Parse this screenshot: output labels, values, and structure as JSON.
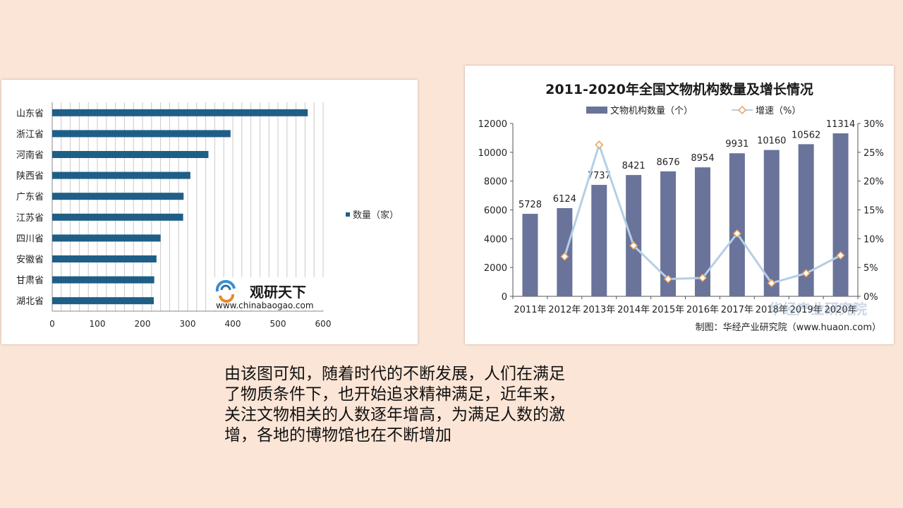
{
  "chart_data": [
    {
      "type": "bar",
      "orientation": "horizontal",
      "categories": [
        "山东省",
        "浙江省",
        "河南省",
        "陕西省",
        "广东省",
        "江苏省",
        "四川省",
        "安徽省",
        "甘肃省",
        "湖北省"
      ],
      "series": [
        {
          "name": "数量（家）",
          "values": [
            566,
            395,
            346,
            306,
            291,
            290,
            240,
            231,
            226,
            225
          ]
        }
      ],
      "xlim": [
        0,
        600
      ],
      "xticks": [
        0,
        100,
        200,
        300,
        400,
        500,
        600
      ],
      "grid": "vertical",
      "legend": "right",
      "color": "#1f5f87"
    },
    {
      "type": "bar",
      "title": "2011-2020年全国文物机构数量及增长情况",
      "categories": [
        "2011年",
        "2012年",
        "2013年",
        "2014年",
        "2015年",
        "2016年",
        "2017年",
        "2018年",
        "2019年",
        "2020年"
      ],
      "series": [
        {
          "name": "文物机构数量（个）",
          "type": "bar",
          "axis": "left",
          "values": [
            5728,
            6124,
            7737,
            8421,
            8676,
            8954,
            9931,
            10160,
            10562,
            11314
          ]
        },
        {
          "name": "增速（%）",
          "type": "line",
          "axis": "right",
          "values": [
            null,
            6.9,
            26.3,
            8.8,
            3.0,
            3.2,
            10.9,
            2.3,
            4.0,
            7.1
          ]
        }
      ],
      "ylim_left": [
        0,
        12000
      ],
      "yticks_left": [
        0,
        2000,
        4000,
        6000,
        8000,
        10000,
        12000
      ],
      "ylim_right": [
        0,
        30
      ],
      "yticks_right": [
        "0%",
        "5%",
        "10%",
        "15%",
        "20%",
        "25%",
        "30%"
      ],
      "legend": "top",
      "source": "制图：华经产业研究院（www.huaon.com）",
      "bar_color": "#6a739a",
      "line_color": "#b5cfe4",
      "marker_color": "#e8a15a"
    }
  ],
  "left_logo": {
    "name": "观研天下",
    "url": "www.chinabaogao.com"
  },
  "right_watermark": "华经产业研究院",
  "caption": "由该图可知，随着时代的不断发展，人们在满足\n了物质条件下，也开始追求精神满足，近年来，\n关注文物相关的人数逐年增高，为满足人数的激\n增，各地的博物馆也在不断增加",
  "colors": {
    "background": "#fbe5d6"
  }
}
